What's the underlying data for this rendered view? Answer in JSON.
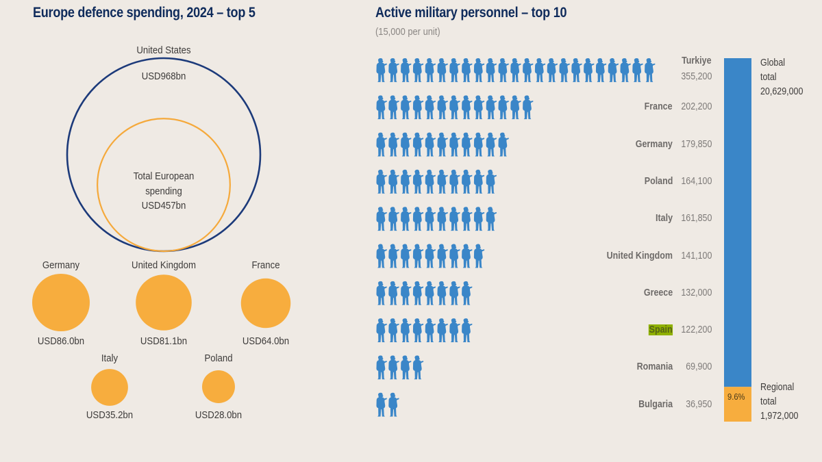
{
  "colors": {
    "title": "#0f2b5b",
    "us_ring": "#1c3a7a",
    "europe_ring": "#f5a93b",
    "country_bubble": "#f7ad3e",
    "soldier": "#3a86c8",
    "global_bar": "#3a86c8",
    "regional_bar": "#f7ad3e",
    "highlight": "#8fb000"
  },
  "chart_data": [
    {
      "type": "bubble",
      "title": "Europe defence spending, 2024 – top 5",
      "unit": "USD bn",
      "reference": {
        "us": {
          "name": "United States",
          "value": 968,
          "label": "USD968bn"
        },
        "europe_total": {
          "name": "Total European spending",
          "label_lines": [
            "Total European",
            "spending",
            "USD457bn"
          ],
          "value": 457
        }
      },
      "bubbles": [
        {
          "name": "Germany",
          "value": 86.0,
          "label": "USD86.0bn"
        },
        {
          "name": "United Kingdom",
          "value": 81.1,
          "label": "USD81.1bn"
        },
        {
          "name": "France",
          "value": 64.0,
          "label": "USD64.0bn"
        },
        {
          "name": "Italy",
          "value": 35.2,
          "label": "USD35.2bn"
        },
        {
          "name": "Poland",
          "value": 28.0,
          "label": "USD28.0bn"
        }
      ]
    },
    {
      "type": "pictogram",
      "title": "Active military personnel – top 10",
      "subtitle": "(15,000 per unit)",
      "unit_value": 15000,
      "categories": [
        "Turkiye",
        "France",
        "Germany",
        "Poland",
        "Italy",
        "United Kingdom",
        "Greece",
        "Spain",
        "Romania",
        "Bulgaria"
      ],
      "values": [
        355200,
        202200,
        179850,
        164100,
        161850,
        141100,
        132000,
        122200,
        69900,
        36950
      ],
      "value_labels": [
        "355,200",
        "202,200",
        "179,850",
        "164,100",
        "161,850",
        "141,100",
        "132,000",
        "122,200",
        "69,900",
        "36,950"
      ],
      "highlighted": "Spain",
      "stacked_bar": {
        "global_total": 20629000,
        "global_label_lines": [
          "Global",
          "total",
          "20,629,000"
        ],
        "regional_total": 1972000,
        "regional_label_lines": [
          "Regional",
          "total",
          "1,972,000"
        ],
        "regional_share_label": "9.6%",
        "regional_share": 9.6
      }
    }
  ]
}
